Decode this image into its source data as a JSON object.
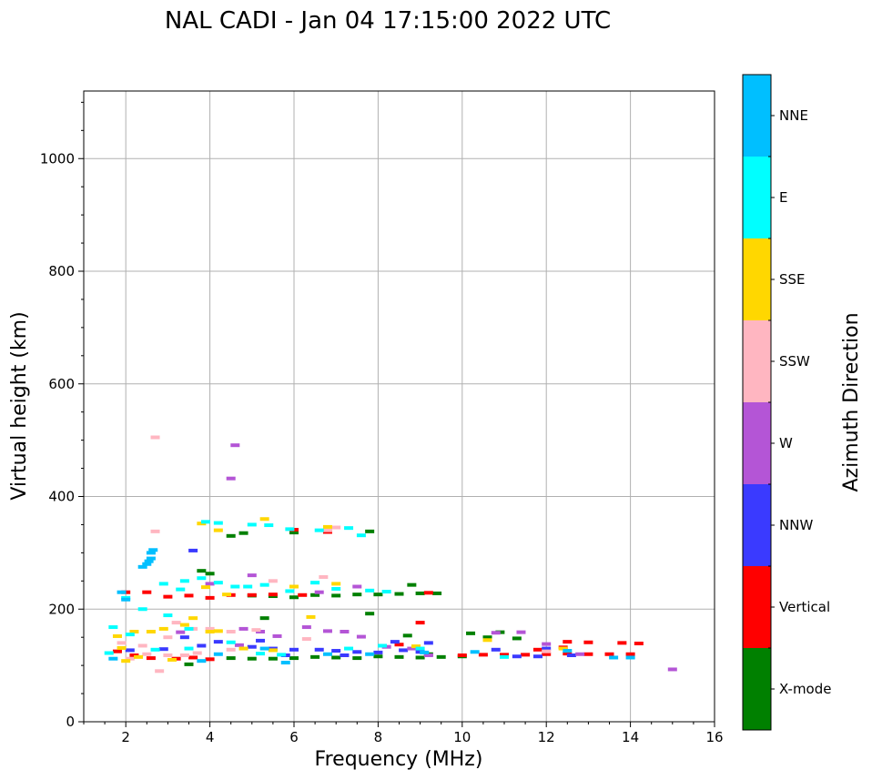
{
  "chart_data": {
    "type": "scatter",
    "title": "NAL CADI - Jan 04 17:15:00 2022 UTC",
    "xlabel": "Frequency (MHz)",
    "ylabel": "Virtual height (km)",
    "xlim": [
      1,
      16
    ],
    "ylim": [
      0,
      1120
    ],
    "grid": true,
    "x_ticks": [
      "2",
      "4",
      "6",
      "8",
      "10",
      "12",
      "14",
      "16"
    ],
    "y_ticks": [
      "0",
      "200",
      "400",
      "600",
      "800",
      "1000"
    ],
    "colorbar": {
      "label": "Azimuth Direction",
      "categories": [
        {
          "name": "X-mode",
          "color": "#008000"
        },
        {
          "name": "Vertical",
          "color": "#ff0000"
        },
        {
          "name": "NNW",
          "color": "#3a3aff"
        },
        {
          "name": "W",
          "color": "#b455d6"
        },
        {
          "name": "SSW",
          "color": "#ffb6c1"
        },
        {
          "name": "SSE",
          "color": "#ffd700"
        },
        {
          "name": "E",
          "color": "#00ffff"
        },
        {
          "name": "NNE",
          "color": "#00bfff"
        }
      ]
    },
    "series": [
      {
        "name": "X-mode",
        "points": [
          [
            4.5,
            113
          ],
          [
            5.0,
            112
          ],
          [
            5.5,
            112
          ],
          [
            6.0,
            113
          ],
          [
            6.5,
            115
          ],
          [
            7.0,
            114
          ],
          [
            7.5,
            113
          ],
          [
            8.0,
            116
          ],
          [
            8.5,
            115
          ],
          [
            9.0,
            114
          ],
          [
            9.5,
            115
          ],
          [
            10.0,
            116
          ],
          [
            6.0,
            221
          ],
          [
            6.5,
            225
          ],
          [
            7.0,
            224
          ],
          [
            7.5,
            226
          ],
          [
            8.0,
            226
          ],
          [
            8.5,
            227
          ],
          [
            9.0,
            228
          ],
          [
            9.4,
            228
          ],
          [
            5.0,
            224
          ],
          [
            5.5,
            223
          ],
          [
            3.8,
            268
          ],
          [
            4.0,
            263
          ],
          [
            5.3,
            184
          ],
          [
            7.8,
            192
          ],
          [
            8.7,
            153
          ],
          [
            9.2,
            120
          ],
          [
            10.2,
            157
          ],
          [
            10.6,
            150
          ],
          [
            10.9,
            159
          ],
          [
            11.3,
            148
          ],
          [
            6.0,
            336
          ],
          [
            7.8,
            338
          ],
          [
            4.8,
            335
          ],
          [
            4.5,
            330
          ],
          [
            8.8,
            243
          ],
          [
            3.5,
            102
          ]
        ]
      },
      {
        "name": "Vertical",
        "points": [
          [
            2.0,
            230
          ],
          [
            2.5,
            230
          ],
          [
            3.0,
            222
          ],
          [
            3.5,
            224
          ],
          [
            4.0,
            220
          ],
          [
            4.5,
            225
          ],
          [
            5.0,
            225
          ],
          [
            5.5,
            226
          ],
          [
            6.2,
            225
          ],
          [
            9.2,
            229
          ],
          [
            10.0,
            118
          ],
          [
            10.5,
            119
          ],
          [
            11.0,
            119
          ],
          [
            11.5,
            119
          ],
          [
            12.0,
            120
          ],
          [
            12.5,
            121
          ],
          [
            13.0,
            120
          ],
          [
            13.5,
            120
          ],
          [
            14.0,
            120
          ],
          [
            12.5,
            142
          ],
          [
            13.0,
            141
          ],
          [
            13.8,
            140
          ],
          [
            14.2,
            139
          ],
          [
            11.8,
            128
          ],
          [
            12.4,
            132
          ],
          [
            9.0,
            176
          ],
          [
            8.5,
            137
          ],
          [
            6.0,
            341
          ],
          [
            6.8,
            337
          ],
          [
            1.8,
            125
          ],
          [
            2.2,
            118
          ],
          [
            2.6,
            113
          ],
          [
            3.2,
            112
          ],
          [
            3.6,
            114
          ],
          [
            4.0,
            111
          ]
        ]
      },
      {
        "name": "NNW",
        "points": [
          [
            3.6,
            304
          ],
          [
            5.0,
            133
          ],
          [
            5.5,
            130
          ],
          [
            6.0,
            128
          ],
          [
            6.6,
            128
          ],
          [
            7.0,
            126
          ],
          [
            7.5,
            124
          ],
          [
            8.0,
            123
          ],
          [
            8.4,
            142
          ],
          [
            8.6,
            127
          ],
          [
            9.0,
            124
          ],
          [
            9.2,
            140
          ],
          [
            10.8,
            128
          ],
          [
            11.3,
            116
          ],
          [
            11.8,
            116
          ],
          [
            12.0,
            130
          ],
          [
            12.6,
            118
          ],
          [
            5.2,
            144
          ],
          [
            4.2,
            142
          ],
          [
            3.8,
            135
          ],
          [
            5.8,
            118
          ],
          [
            7.2,
            118
          ],
          [
            2.1,
            127
          ],
          [
            2.9,
            129
          ],
          [
            3.4,
            150
          ]
        ]
      },
      {
        "name": "W",
        "points": [
          [
            4.5,
            432
          ],
          [
            4.6,
            491
          ],
          [
            4.8,
            165
          ],
          [
            5.2,
            160
          ],
          [
            5.6,
            152
          ],
          [
            6.3,
            168
          ],
          [
            6.8,
            161
          ],
          [
            7.2,
            160
          ],
          [
            7.6,
            151
          ],
          [
            8.2,
            133
          ],
          [
            8.8,
            130
          ],
          [
            9.2,
            118
          ],
          [
            10.8,
            158
          ],
          [
            11.4,
            159
          ],
          [
            12.0,
            138
          ],
          [
            12.8,
            120
          ],
          [
            15.0,
            93
          ],
          [
            5.0,
            260
          ],
          [
            6.6,
            230
          ],
          [
            7.5,
            240
          ],
          [
            4.0,
            245
          ],
          [
            3.3,
            159
          ],
          [
            4.7,
            136
          ]
        ]
      },
      {
        "name": "SSW",
        "points": [
          [
            2.7,
            505
          ],
          [
            2.7,
            338
          ],
          [
            2.8,
            90
          ],
          [
            3.0,
            150
          ],
          [
            3.2,
            176
          ],
          [
            3.6,
            165
          ],
          [
            4.0,
            165
          ],
          [
            4.5,
            160
          ],
          [
            5.1,
            163
          ],
          [
            6.8,
            340
          ],
          [
            7.0,
            345
          ],
          [
            5.5,
            250
          ],
          [
            6.7,
            257
          ],
          [
            4.5,
            128
          ],
          [
            3.7,
            122
          ],
          [
            2.4,
            135
          ],
          [
            1.9,
            140
          ],
          [
            2.1,
            112
          ],
          [
            2.5,
            120
          ],
          [
            3.0,
            118
          ],
          [
            3.4,
            118
          ],
          [
            12.0,
            125
          ],
          [
            6.3,
            147
          ]
        ]
      },
      {
        "name": "SSE",
        "points": [
          [
            2.3,
            115
          ],
          [
            1.9,
            131
          ],
          [
            1.8,
            152
          ],
          [
            2.2,
            160
          ],
          [
            2.6,
            160
          ],
          [
            2.9,
            165
          ],
          [
            3.4,
            172
          ],
          [
            3.6,
            184
          ],
          [
            4.0,
            160
          ],
          [
            4.2,
            161
          ],
          [
            4.8,
            130
          ],
          [
            5.5,
            127
          ],
          [
            6.4,
            186
          ],
          [
            7.0,
            245
          ],
          [
            6.0,
            240
          ],
          [
            4.4,
            226
          ],
          [
            3.9,
            239
          ],
          [
            3.8,
            352
          ],
          [
            4.2,
            340
          ],
          [
            5.3,
            360
          ],
          [
            6.8,
            346
          ],
          [
            8.9,
            134
          ],
          [
            10.6,
            145
          ],
          [
            12.4,
            130
          ],
          [
            3.1,
            110
          ],
          [
            2.0,
            108
          ]
        ]
      },
      {
        "name": "E",
        "points": [
          [
            3.9,
            355
          ],
          [
            4.2,
            353
          ],
          [
            5.0,
            350
          ],
          [
            5.4,
            349
          ],
          [
            5.9,
            342
          ],
          [
            6.6,
            340
          ],
          [
            7.3,
            344
          ],
          [
            7.6,
            331
          ],
          [
            3.4,
            250
          ],
          [
            3.8,
            255
          ],
          [
            4.2,
            247
          ],
          [
            4.6,
            240
          ],
          [
            4.9,
            240
          ],
          [
            5.3,
            243
          ],
          [
            5.9,
            232
          ],
          [
            6.5,
            247
          ],
          [
            7.0,
            236
          ],
          [
            7.8,
            233
          ],
          [
            8.2,
            231
          ],
          [
            2.9,
            245
          ],
          [
            3.3,
            235
          ],
          [
            2.4,
            200
          ],
          [
            2.0,
            220
          ],
          [
            3.0,
            189
          ],
          [
            3.5,
            165
          ],
          [
            4.5,
            141
          ],
          [
            5.2,
            121
          ],
          [
            5.7,
            119
          ],
          [
            7.3,
            130
          ],
          [
            8.1,
            135
          ],
          [
            9.0,
            130
          ],
          [
            1.7,
            168
          ],
          [
            2.1,
            155
          ],
          [
            1.6,
            122
          ],
          [
            2.7,
            128
          ],
          [
            3.5,
            130
          ],
          [
            11.0,
            115
          ]
        ]
      },
      {
        "name": "NNE",
        "points": [
          [
            2.4,
            275
          ],
          [
            2.5,
            280
          ],
          [
            2.55,
            285
          ],
          [
            2.6,
            290
          ],
          [
            2.6,
            300
          ],
          [
            2.65,
            305
          ],
          [
            5.3,
            130
          ],
          [
            5.8,
            105
          ],
          [
            6.8,
            120
          ],
          [
            7.8,
            120
          ],
          [
            9.1,
            123
          ],
          [
            10.3,
            124
          ],
          [
            12.5,
            126
          ],
          [
            13.6,
            114
          ],
          [
            14.0,
            114
          ],
          [
            1.9,
            230
          ],
          [
            2.0,
            217
          ],
          [
            4.2,
            120
          ],
          [
            3.8,
            108
          ],
          [
            1.7,
            112
          ]
        ]
      }
    ]
  }
}
